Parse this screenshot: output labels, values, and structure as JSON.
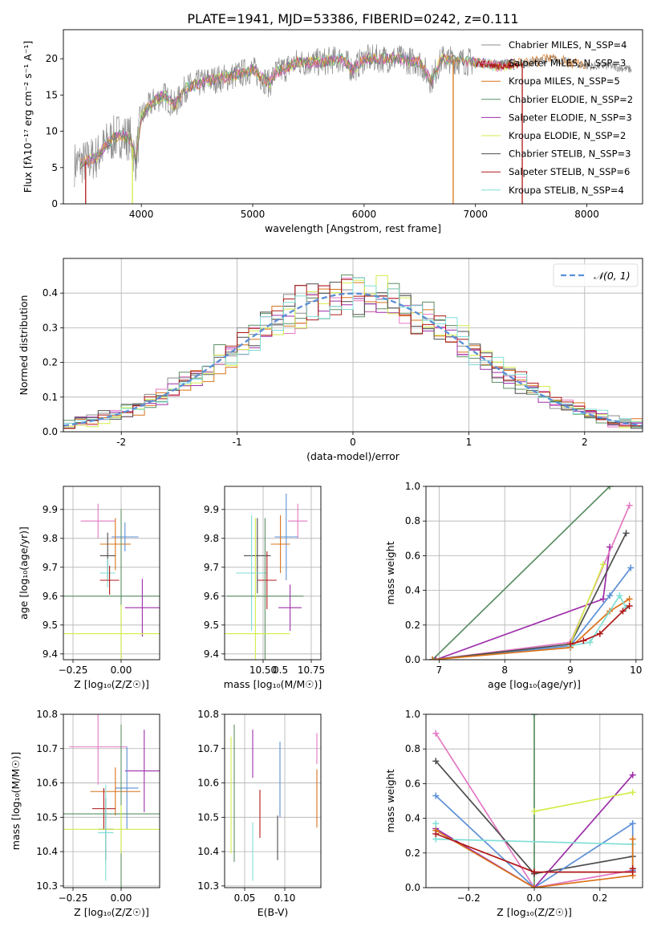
{
  "figure_title": "PLATE=1941, MJD=53386, FIBERID=0242, z=0.111",
  "colors": {
    "chabrier_miles": "#8c8c8c",
    "salpeter_miles": "#e377c2",
    "kroupa_miles": "#d9731a",
    "chabrier_elodie": "#5b8f63",
    "salpeter_elodie": "#9d2ea8",
    "kroupa_elodie": "#d2ee4a",
    "chabrier_stelib": "#4d4d4d",
    "salpeter_stelib": "#b01818",
    "kroupa_stelib": "#7fded6",
    "normal": "#5b8fd6"
  },
  "chart_data": [
    {
      "id": "spectrum",
      "type": "line",
      "xlabel": "wavelength [Angstrom, rest frame]",
      "ylabel": "Flux [fλ10⁻¹⁷ erg cm⁻² s⁻¹ A⁻¹]",
      "xlim": [
        3300,
        8500
      ],
      "ylim": [
        0,
        24
      ],
      "xticks": [
        4000,
        5000,
        6000,
        7000,
        8000
      ],
      "yticks": [
        0,
        5,
        10,
        15,
        20
      ],
      "grid": false,
      "legend_position": "top-right",
      "legend": [
        {
          "label": "Chabrier MILES, N_SSP=4",
          "color_key": "chabrier_miles"
        },
        {
          "label": "Salpeter MILES, N_SSP=3",
          "color_key": "salpeter_miles"
        },
        {
          "label": "Kroupa MILES, N_SSP=5",
          "color_key": "kroupa_miles"
        },
        {
          "label": "Chabrier ELODIE, N_SSP=2",
          "color_key": "chabrier_elodie"
        },
        {
          "label": "Salpeter ELODIE, N_SSP=3",
          "color_key": "salpeter_elodie"
        },
        {
          "label": "Kroupa ELODIE, N_SSP=2",
          "color_key": "kroupa_elodie"
        },
        {
          "label": "Chabrier STELIB, N_SSP=3",
          "color_key": "chabrier_stelib"
        },
        {
          "label": "Salpeter STELIB, N_SSP=6",
          "color_key": "salpeter_stelib"
        },
        {
          "label": "Kroupa STELIB, N_SSP=4",
          "color_key": "kroupa_stelib"
        }
      ],
      "data_continuum": [
        [
          3400,
          5.5
        ],
        [
          3500,
          5.8
        ],
        [
          3600,
          6.5
        ],
        [
          3700,
          8.5
        ],
        [
          3800,
          9.5
        ],
        [
          3900,
          9.0
        ],
        [
          3950,
          6.0
        ],
        [
          4000,
          12.0
        ],
        [
          4100,
          14.0
        ],
        [
          4200,
          15.0
        ],
        [
          4300,
          13.5
        ],
        [
          4400,
          16.0
        ],
        [
          4600,
          17.0
        ],
        [
          4800,
          17.5
        ],
        [
          5000,
          18.5
        ],
        [
          5150,
          16.5
        ],
        [
          5200,
          18.0
        ],
        [
          5400,
          19.5
        ],
        [
          5600,
          19.5
        ],
        [
          5800,
          20.0
        ],
        [
          5900,
          18.5
        ],
        [
          6000,
          20.0
        ],
        [
          6300,
          20.0
        ],
        [
          6500,
          19.5
        ],
        [
          6600,
          17.0
        ],
        [
          6700,
          20.0
        ],
        [
          7000,
          19.5
        ],
        [
          7200,
          19.0
        ],
        [
          7500,
          19.5
        ],
        [
          7700,
          20.0
        ],
        [
          8000,
          19.0
        ],
        [
          8200,
          19.0
        ],
        [
          8400,
          18.5
        ]
      ],
      "dropouts": [
        {
          "x": 3500,
          "color_key": "salpeter_stelib"
        },
        {
          "x": 3920,
          "color_key": "kroupa_elodie"
        },
        {
          "x": 6800,
          "color_key": "kroupa_miles"
        },
        {
          "x": 7420,
          "color_key": "salpeter_stelib"
        }
      ]
    },
    {
      "id": "residual-histogram",
      "type": "histogram",
      "xlabel": "(data-model)/error",
      "ylabel": "Normed distribution",
      "xlim": [
        -2.5,
        2.5
      ],
      "ylim": [
        0,
        0.5
      ],
      "xticks": [
        -2,
        -1,
        0,
        1,
        2
      ],
      "yticks": [
        0.0,
        0.1,
        0.2,
        0.3,
        0.4
      ],
      "grid": true,
      "legend_position": "top-right",
      "normal_label": "𝒩(0, 1)",
      "normal_mean": 0,
      "normal_std": 1,
      "bin_width": 0.1
    },
    {
      "id": "age-vs-Z",
      "type": "scatter-errorbar",
      "xlabel": "Z [log₁₀(Z/Z☉)]",
      "ylabel": "age  [log₁₀(age/yr)]",
      "xlim": [
        -0.3,
        0.2
      ],
      "ylim": [
        9.38,
        9.98
      ],
      "xticks": [
        -0.25,
        0.0
      ],
      "xtick_labels": [
        "−0.25",
        "0.00"
      ],
      "yticks": [
        9.4,
        9.5,
        9.6,
        9.7,
        9.8,
        9.9
      ],
      "grid": true,
      "points": [
        {
          "color_key": "salpeter_miles",
          "x": -0.12,
          "xerr": 0.09,
          "y": 9.86,
          "yerr": 0.06
        },
        {
          "color_key": "normal",
          "x": 0.02,
          "xerr": 0.07,
          "y": 9.805,
          "yerr": 0.05
        },
        {
          "color_key": "kroupa_miles",
          "x": -0.03,
          "xerr": 0.08,
          "y": 9.78,
          "yerr": 0.09
        },
        {
          "color_key": "chabrier_stelib",
          "x": -0.07,
          "xerr": 0.04,
          "y": 9.74,
          "yerr": 0.08
        },
        {
          "color_key": "kroupa_stelib",
          "x": -0.07,
          "xerr": 0.04,
          "y": 9.68,
          "yerr": 0.05
        },
        {
          "color_key": "salpeter_stelib",
          "x": -0.06,
          "xerr": 0.05,
          "y": 9.655,
          "yerr": 0.05
        },
        {
          "color_key": "chabrier_elodie",
          "x": 0.0,
          "xerr": 0.3,
          "y": 9.6,
          "yerr": 0.3
        },
        {
          "color_key": "salpeter_elodie",
          "x": 0.11,
          "xerr": 0.09,
          "y": 9.56,
          "yerr": 0.1
        },
        {
          "color_key": "kroupa_elodie",
          "x": 0.0,
          "xerr": 0.3,
          "y": 9.47,
          "yerr": 0.1
        }
      ]
    },
    {
      "id": "age-vs-mass",
      "type": "scatter-errorbar",
      "xlabel": "mass [log₁₀(M/M☉)]",
      "ylabel": "",
      "xlim": [
        10.3,
        10.8
      ],
      "ylim": [
        9.38,
        9.98
      ],
      "xticks": [
        10.5,
        10.75
      ],
      "xtick_labels": [
        "10.50",
        "10.75"
      ],
      "extra_tick_labels": [
        {
          "value": 10.59,
          "label": "0.5"
        }
      ],
      "yticks": [
        9.4,
        9.5,
        9.6,
        9.7,
        9.8,
        9.9
      ],
      "grid": true,
      "points": [
        {
          "color_key": "salpeter_miles",
          "x": 10.68,
          "xerr": 0.05,
          "y": 9.86,
          "yerr": 0.06
        },
        {
          "color_key": "normal",
          "x": 10.62,
          "xerr": 0.06,
          "y": 9.805,
          "yerr": 0.15
        },
        {
          "color_key": "kroupa_miles",
          "x": 10.59,
          "xerr": 0.05,
          "y": 9.78,
          "yerr": 0.1
        },
        {
          "color_key": "chabrier_stelib",
          "x": 10.47,
          "xerr": 0.07,
          "y": 9.74,
          "yerr": 0.13
        },
        {
          "color_key": "kroupa_stelib",
          "x": 10.44,
          "xerr": 0.08,
          "y": 9.68,
          "yerr": 0.2
        },
        {
          "color_key": "salpeter_stelib",
          "x": 10.52,
          "xerr": 0.05,
          "y": 9.655,
          "yerr": 0.1
        },
        {
          "color_key": "chabrier_elodie",
          "x": 10.51,
          "xerr": 0.2,
          "y": 9.6,
          "yerr": 0.27
        },
        {
          "color_key": "salpeter_elodie",
          "x": 10.64,
          "xerr": 0.06,
          "y": 9.56,
          "yerr": 0.08
        },
        {
          "color_key": "kroupa_elodie",
          "x": 10.46,
          "xerr": 0.18,
          "y": 9.47,
          "yerr": 0.4
        }
      ]
    },
    {
      "id": "mass-weight-vs-age",
      "type": "line",
      "xlabel": "age  [log₁₀(age/yr)]",
      "ylabel": "mass weight",
      "xlim": [
        6.8,
        10.1
      ],
      "ylim": [
        0,
        1.0
      ],
      "xticks": [
        7,
        8,
        9,
        10
      ],
      "yticks": [
        0.0,
        0.2,
        0.4,
        0.6,
        0.8,
        1.0
      ],
      "grid": true,
      "series": [
        {
          "color_key": "chabrier_elodie",
          "points": [
            [
              6.9,
              0.0
            ],
            [
              9.6,
              1.0
            ]
          ]
        },
        {
          "color_key": "salpeter_elodie",
          "points": [
            [
              6.95,
              0.0
            ],
            [
              9.5,
              0.35
            ],
            [
              9.6,
              0.65
            ]
          ]
        },
        {
          "color_key": "salpeter_miles",
          "points": [
            [
              6.9,
              0.0
            ],
            [
              9.0,
              0.1
            ],
            [
              9.9,
              0.89
            ]
          ]
        },
        {
          "color_key": "normal",
          "points": [
            [
              6.9,
              0.0
            ],
            [
              9.0,
              0.08
            ],
            [
              9.6,
              0.37
            ],
            [
              9.92,
              0.53
            ]
          ]
        },
        {
          "color_key": "chabrier_stelib",
          "points": [
            [
              6.9,
              0.0
            ],
            [
              9.0,
              0.09
            ],
            [
              9.85,
              0.73
            ]
          ]
        },
        {
          "color_key": "kroupa_miles",
          "points": [
            [
              6.9,
              0.0
            ],
            [
              9.0,
              0.07
            ],
            [
              9.6,
              0.28
            ],
            [
              9.9,
              0.35
            ]
          ]
        },
        {
          "color_key": "kroupa_elodie",
          "points": [
            [
              9.0,
              0.09
            ],
            [
              9.5,
              0.55
            ]
          ]
        },
        {
          "color_key": "kroupa_stelib",
          "points": [
            [
              9.0,
              0.08
            ],
            [
              9.3,
              0.1
            ],
            [
              9.75,
              0.37
            ],
            [
              9.85,
              0.3
            ]
          ]
        },
        {
          "color_key": "salpeter_stelib",
          "points": [
            [
              9.0,
              0.09
            ],
            [
              9.2,
              0.11
            ],
            [
              9.45,
              0.15
            ],
            [
              9.8,
              0.28
            ],
            [
              9.9,
              0.31
            ]
          ]
        }
      ]
    },
    {
      "id": "mass-vs-Z",
      "type": "scatter-errorbar",
      "xlabel": "Z [log₁₀(Z/Z☉)]",
      "ylabel": "mass [log₁₀(M/M☉)]",
      "xlim": [
        -0.3,
        0.2
      ],
      "ylim": [
        10.295,
        10.8
      ],
      "xticks": [
        -0.25,
        0.0
      ],
      "xtick_labels": [
        "−0.25",
        "0.00"
      ],
      "yticks": [
        10.3,
        10.4,
        10.5,
        10.6,
        10.7,
        10.8
      ],
      "grid": true,
      "points": [
        {
          "color_key": "salpeter_miles",
          "x": -0.12,
          "xerr": 0.15,
          "y": 10.705,
          "yerr": 0.11
        },
        {
          "color_key": "salpeter_elodie",
          "x": 0.12,
          "xerr": 0.1,
          "y": 10.635,
          "yerr": 0.12
        },
        {
          "color_key": "normal",
          "x": 0.03,
          "xerr": 0.06,
          "y": 10.585,
          "yerr": 0.12
        },
        {
          "color_key": "kroupa_miles",
          "x": -0.03,
          "xerr": 0.13,
          "y": 10.575,
          "yerr": 0.07
        },
        {
          "color_key": "salpeter_stelib",
          "x": -0.09,
          "xerr": 0.06,
          "y": 10.525,
          "yerr": 0.06
        },
        {
          "color_key": "chabrier_elodie",
          "x": 0.0,
          "xerr": 0.3,
          "y": 10.51,
          "yerr": 0.26
        },
        {
          "color_key": "chabrier_stelib",
          "x": -0.08,
          "xerr": 0.04,
          "y": 10.465,
          "yerr": 0.09
        },
        {
          "color_key": "kroupa_elodie",
          "x": 0.0,
          "xerr": 0.3,
          "y": 10.465,
          "yerr": 0.07
        },
        {
          "color_key": "kroupa_stelib",
          "x": -0.08,
          "xerr": 0.04,
          "y": 10.455,
          "yerr": 0.14
        }
      ]
    },
    {
      "id": "mass-vs-ebv",
      "type": "errorbar",
      "xlabel": "E(B-V)",
      "ylabel": "",
      "xlim": [
        0.025,
        0.145
      ],
      "ylim": [
        10.295,
        10.8
      ],
      "xticks": [
        0.05,
        0.1
      ],
      "xtick_labels": [
        "0.05",
        "0.10"
      ],
      "yticks": [
        10.3,
        10.4,
        10.5,
        10.6,
        10.7,
        10.8
      ],
      "grid": true,
      "points": [
        {
          "color_key": "kroupa_elodie",
          "x": 0.033,
          "y": 10.565,
          "yerr": 0.17
        },
        {
          "color_key": "chabrier_elodie",
          "x": 0.037,
          "y": 10.57,
          "yerr": 0.2
        },
        {
          "color_key": "salpeter_elodie",
          "x": 0.06,
          "y": 10.685,
          "yerr": 0.07
        },
        {
          "color_key": "kroupa_stelib",
          "x": 0.06,
          "y": 10.4,
          "yerr": 0.085
        },
        {
          "color_key": "salpeter_stelib",
          "x": 0.069,
          "y": 10.51,
          "yerr": 0.07
        },
        {
          "color_key": "chabrier_stelib",
          "x": 0.091,
          "y": 10.44,
          "yerr": 0.065
        },
        {
          "color_key": "normal",
          "x": 0.094,
          "y": 10.61,
          "yerr": 0.11
        },
        {
          "color_key": "kroupa_miles",
          "x": 0.14,
          "y": 10.555,
          "yerr": 0.085
        },
        {
          "color_key": "salpeter_miles",
          "x": 0.14,
          "y": 10.7,
          "yerr": 0.045
        }
      ]
    },
    {
      "id": "mass-weight-vs-Z",
      "type": "line",
      "xlabel": "Z [log₁₀(Z/Z☉)]",
      "ylabel": "mass weight",
      "xlim": [
        -0.33,
        0.33
      ],
      "ylim": [
        0,
        1.0
      ],
      "xticks": [
        -0.2,
        0.0,
        0.2
      ],
      "xtick_labels": [
        "−0.2",
        "0.0",
        "0.2"
      ],
      "yticks": [
        0.0,
        0.2,
        0.4,
        0.6,
        0.8,
        1.0
      ],
      "grid": true,
      "series": [
        {
          "color_key": "chabrier_elodie",
          "points": [
            [
              0.0,
              0.0
            ],
            [
              0.0,
              1.0
            ]
          ]
        },
        {
          "color_key": "salpeter_miles",
          "points": [
            [
              -0.3,
              0.89
            ],
            [
              0.0,
              0.0
            ],
            [
              0.3,
              0.1
            ]
          ]
        },
        {
          "color_key": "chabrier_stelib",
          "points": [
            [
              -0.3,
              0.73
            ],
            [
              0.0,
              0.08
            ],
            [
              0.3,
              0.18
            ]
          ]
        },
        {
          "color_key": "normal",
          "points": [
            [
              -0.3,
              0.53
            ],
            [
              0.0,
              0.0
            ],
            [
              0.3,
              0.37
            ],
            [
              0.3,
              0.1
            ]
          ]
        },
        {
          "color_key": "salpeter_elodie",
          "points": [
            [
              -0.3,
              0.34
            ],
            [
              0.0,
              0.0
            ],
            [
              0.3,
              0.65
            ]
          ]
        },
        {
          "color_key": "kroupa_elodie",
          "points": [
            [
              0.0,
              0.44
            ],
            [
              0.3,
              0.55
            ]
          ]
        },
        {
          "color_key": "kroupa_stelib",
          "points": [
            [
              -0.3,
              0.37
            ],
            [
              -0.3,
              0.28
            ],
            [
              0.3,
              0.25
            ]
          ]
        },
        {
          "color_key": "kroupa_miles",
          "points": [
            [
              -0.3,
              0.33
            ],
            [
              0.0,
              0.0
            ],
            [
              0.3,
              0.07
            ],
            [
              0.3,
              0.28
            ]
          ]
        },
        {
          "color_key": "salpeter_stelib",
          "points": [
            [
              -0.3,
              0.31
            ],
            [
              0.0,
              0.09
            ],
            [
              0.3,
              0.09
            ],
            [
              0.3,
              0.11
            ]
          ]
        }
      ]
    }
  ]
}
